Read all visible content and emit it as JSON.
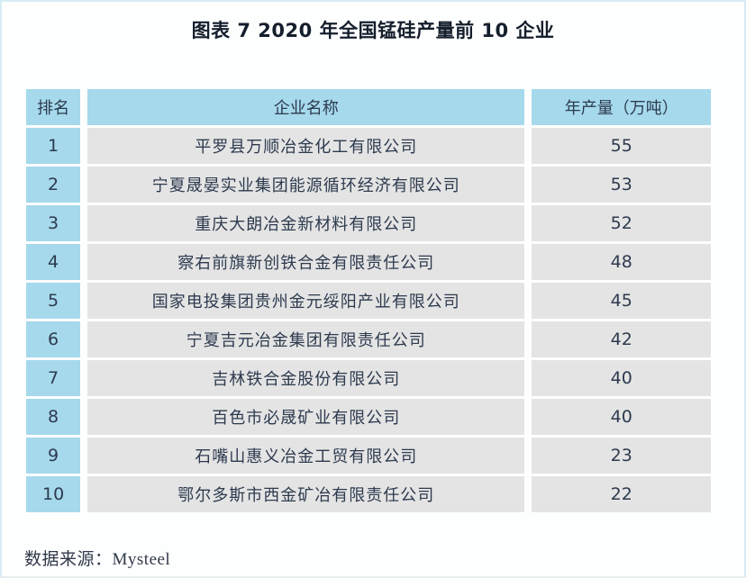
{
  "title": "图表 7  2020 年全国锰硅产量前 10 企业",
  "table": {
    "headers": {
      "rank": "排名",
      "company": "企业名称",
      "output": "年产量（万吨）"
    },
    "rows": [
      {
        "rank": "1",
        "company": "平罗县万顺冶金化工有限公司",
        "output": "55"
      },
      {
        "rank": "2",
        "company": "宁夏晟晏实业集团能源循环经济有限公司",
        "output": "53"
      },
      {
        "rank": "3",
        "company": "重庆大朗冶金新材料有限公司",
        "output": "52"
      },
      {
        "rank": "4",
        "company": "察右前旗新创铁合金有限责任公司",
        "output": "48"
      },
      {
        "rank": "5",
        "company": "国家电投集团贵州金元绥阳产业有限公司",
        "output": "45"
      },
      {
        "rank": "6",
        "company": "宁夏吉元冶金集团有限责任公司",
        "output": "42"
      },
      {
        "rank": "7",
        "company": "吉林铁合金股份有限公司",
        "output": "40"
      },
      {
        "rank": "8",
        "company": "百色市必晟矿业有限公司",
        "output": "40"
      },
      {
        "rank": "9",
        "company": "石嘴山惠义冶金工贸有限公司",
        "output": "23"
      },
      {
        "rank": "10",
        "company": "鄂尔多斯市西金矿冶有限责任公司",
        "output": "22"
      }
    ]
  },
  "source": "数据来源：Mysteel",
  "colors": {
    "header_bg": "#a6d9ec",
    "rank_bg": "#a6d9ec",
    "cell_bg": "#e4e4e4",
    "gutter": "#ffffff",
    "text": "#2d3a4e",
    "title_text": "#141e2c"
  },
  "chart_data": {
    "type": "table",
    "title": "图表 7  2020 年全国锰硅产量前 10 企业",
    "columns": [
      "排名",
      "企业名称",
      "年产量（万吨）"
    ],
    "rows": [
      [
        1,
        "平罗县万顺冶金化工有限公司",
        55
      ],
      [
        2,
        "宁夏晟晏实业集团能源循环经济有限公司",
        53
      ],
      [
        3,
        "重庆大朗冶金新材料有限公司",
        52
      ],
      [
        4,
        "察右前旗新创铁合金有限责任公司",
        48
      ],
      [
        5,
        "国家电投集团贵州金元绥阳产业有限公司",
        45
      ],
      [
        6,
        "宁夏吉元冶金集团有限责任公司",
        42
      ],
      [
        7,
        "吉林铁合金股份有限公司",
        40
      ],
      [
        8,
        "百色市必晟矿业有限公司",
        40
      ],
      [
        9,
        "石嘴山惠义冶金工贸有限公司",
        23
      ],
      [
        10,
        "鄂尔多斯市西金矿冶有限责任公司",
        22
      ]
    ],
    "value_unit": "万吨",
    "source": "数据来源：Mysteel",
    "layout": {
      "header_position": "top",
      "rank_column_highlighted": true
    }
  }
}
